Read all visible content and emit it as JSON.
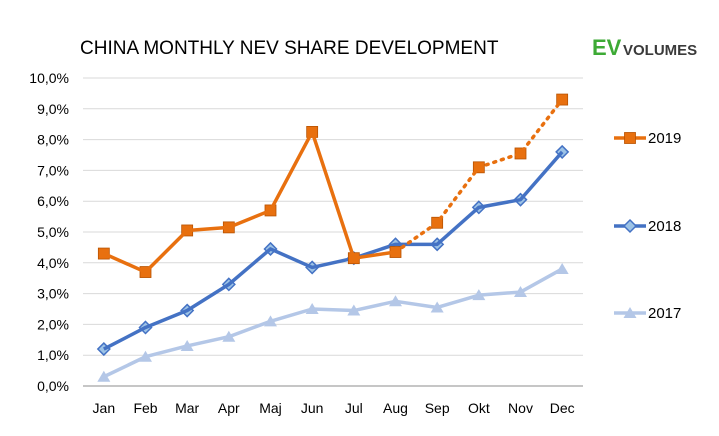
{
  "chart_data": {
    "type": "line",
    "title": "CHINA MONTHLY NEV SHARE DEVELOPMENT",
    "categories": [
      "Jan",
      "Feb",
      "Mar",
      "Apr",
      "Maj",
      "Jun",
      "Jul",
      "Aug",
      "Sep",
      "Okt",
      "Nov",
      "Dec"
    ],
    "ylim": [
      0,
      10
    ],
    "ytick_labels": [
      "0,0%",
      "1,0%",
      "2,0%",
      "3,0%",
      "4,0%",
      "5,0%",
      "6,0%",
      "7,0%",
      "8,0%",
      "9,0%",
      "10,0%"
    ],
    "grid": true,
    "legend_position": "right",
    "series": [
      {
        "name": "2019",
        "color": "#E8700F",
        "marker": "square",
        "values": [
          4.3,
          3.7,
          5.05,
          5.15,
          5.7,
          8.25,
          4.15,
          4.35,
          null,
          null,
          null,
          null
        ],
        "forecast_values": [
          null,
          null,
          null,
          null,
          null,
          null,
          null,
          4.35,
          5.3,
          7.1,
          7.55,
          9.3
        ]
      },
      {
        "name": "2018",
        "color": "#4472C4",
        "marker": "diamond",
        "values": [
          1.2,
          1.9,
          2.45,
          3.3,
          4.45,
          3.85,
          4.15,
          4.6,
          4.6,
          5.8,
          6.05,
          7.6
        ]
      },
      {
        "name": "2017",
        "color": "#B4C7E7",
        "marker": "triangle",
        "values": [
          0.3,
          0.95,
          1.3,
          1.6,
          2.1,
          2.5,
          2.45,
          2.75,
          2.55,
          2.95,
          3.05,
          3.8
        ]
      }
    ]
  },
  "logo": {
    "ev": "EV",
    "volumes": "VOLUMES",
    "ev_color": "#3DAA35",
    "volumes_color": "#3A3A3A"
  }
}
